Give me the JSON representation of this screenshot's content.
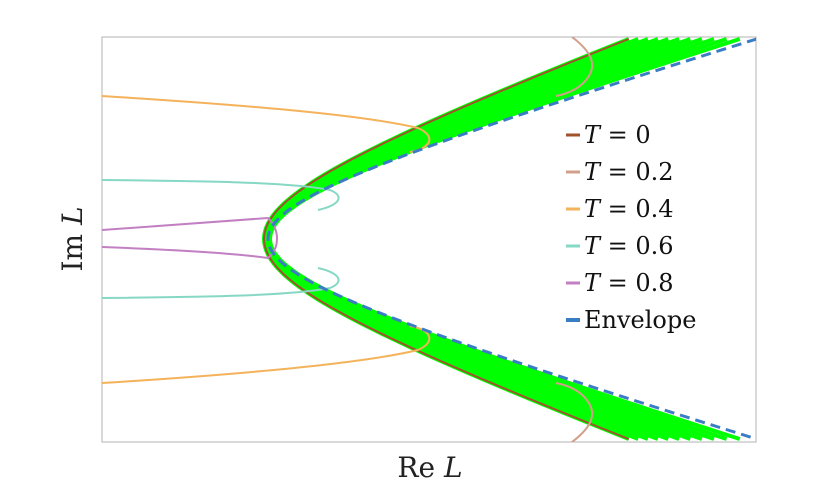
{
  "chart_data": {
    "type": "line",
    "title": "",
    "xlabel": "Re L",
    "ylabel": "Im L",
    "xlabel_text": "Re ",
    "xlabel_symbol": "L",
    "ylabel_text": "Im ",
    "ylabel_symbol": "L",
    "grid": false,
    "legend_position": "right",
    "x_ticks": "none",
    "y_ticks": "none",
    "series": [
      {
        "name": "T = 0",
        "symbol": "T",
        "value_label": " = 0",
        "color": "#a0522d",
        "style": "solid"
      },
      {
        "name": "T = 0.2",
        "symbol": "T",
        "value_label": " = 0.2",
        "color": "#d2a08a",
        "style": "solid"
      },
      {
        "name": "T = 0.4",
        "symbol": "T",
        "value_label": " = 0.4",
        "color": "#f4b25b",
        "style": "solid"
      },
      {
        "name": "T = 0.6",
        "symbol": "T",
        "value_label": " = 0.6",
        "color": "#86d8c4",
        "style": "solid"
      },
      {
        "name": "T = 0.8",
        "symbol": "T",
        "value_label": " = 0.8",
        "color": "#c27fc2",
        "style": "solid"
      },
      {
        "name": "Envelope",
        "symbol": "",
        "value_label": "Envelope",
        "color": "#3b7dc4",
        "style": "dashed"
      }
    ],
    "band_color": "#00ff00"
  }
}
